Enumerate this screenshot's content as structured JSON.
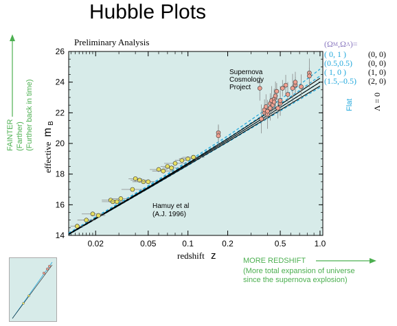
{
  "page": {
    "title": "Hubble Plots"
  },
  "annotations": {
    "fainter": "FAINTER",
    "farther": "(Farther)",
    "further_back": "(Further back in time)",
    "more_redshift": "MORE REDSHIFT",
    "more_redshift_note_1": "(More total expansion of universe",
    "more_redshift_note_2": "since the supernova explosion)",
    "flat": "Flat",
    "lambda_zero": "Λ = 0"
  },
  "legend": {
    "header": "(Ω",
    "header_m": "M",
    "header_sep": ",Ω",
    "header_l": "Λ",
    "header_end": ")=",
    "rows": [
      {
        "flat": "( 0,    1 )",
        "open": "(0, 0)"
      },
      {
        "flat": "(0.5,0.5)",
        "open": "(0, 0)"
      },
      {
        "flat": "( 1,    0 )",
        "open": "(1, 0)"
      },
      {
        "flat": "(1.5,–0.5)",
        "open": "(2, 0)"
      }
    ]
  },
  "colors": {
    "plot_bg": "#d7ebe9",
    "flat_models": "#22a8dc",
    "open_models": "#000000",
    "high_z_points": "#f0a090",
    "low_z_points": "#e8e060",
    "error_bars": "#888888",
    "arrow_green": "#4caf50"
  },
  "chart_data": {
    "type": "scatter",
    "title": "Preliminary Analysis",
    "xlabel": "redshift",
    "xlabel_symbol": "z",
    "ylabel": "effective",
    "ylabel_symbol": "m",
    "ylabel_sub": "B",
    "x_scale": "log",
    "xlim": [
      0.0125,
      1.05
    ],
    "ylim": [
      14,
      26
    ],
    "x_ticks": [
      0.02,
      0.05,
      0.1,
      0.2,
      0.5,
      1.0
    ],
    "x_tick_labels": [
      "0.02",
      "0.05",
      "0.1",
      "0.2",
      "0.5",
      "1.0"
    ],
    "y_ticks": [
      14,
      16,
      18,
      20,
      22,
      24,
      26
    ],
    "y_tick_labels": [
      "14",
      "16",
      "18",
      "20",
      "22",
      "24",
      "26"
    ],
    "text_labels": {
      "high_z_group_1": "Supernova",
      "high_z_group_2": "Cosmology",
      "high_z_group_3": "Project",
      "low_z_group_1": "Hamuy et al",
      "low_z_group_2": "(A.J. 1996)"
    },
    "series": [
      {
        "name": "Supernova Cosmology Project",
        "marker": "circle",
        "color": "#f0a090",
        "points": [
          [
            0.17,
            20.7
          ],
          [
            0.17,
            20.5
          ],
          [
            0.35,
            23.6
          ],
          [
            0.36,
            21.6
          ],
          [
            0.38,
            22.0
          ],
          [
            0.38,
            22.2
          ],
          [
            0.39,
            22.4
          ],
          [
            0.4,
            21.9
          ],
          [
            0.4,
            22.1
          ],
          [
            0.42,
            22.6
          ],
          [
            0.42,
            22.3
          ],
          [
            0.43,
            22.8
          ],
          [
            0.44,
            22.5
          ],
          [
            0.45,
            22.9
          ],
          [
            0.45,
            22.7
          ],
          [
            0.46,
            23.1
          ],
          [
            0.47,
            23.4
          ],
          [
            0.48,
            22.3
          ],
          [
            0.5,
            22.6
          ],
          [
            0.5,
            22.8
          ],
          [
            0.52,
            23.6
          ],
          [
            0.55,
            23.8
          ],
          [
            0.57,
            23.2
          ],
          [
            0.62,
            23.6
          ],
          [
            0.65,
            23.8
          ],
          [
            0.65,
            24.0
          ],
          [
            0.72,
            23.7
          ],
          [
            0.83,
            24.6
          ],
          [
            0.83,
            24.4
          ]
        ]
      },
      {
        "name": "Hamuy et al",
        "marker": "circle",
        "color": "#e8e060",
        "points": [
          [
            0.0145,
            14.6
          ],
          [
            0.017,
            15.0
          ],
          [
            0.019,
            15.4
          ],
          [
            0.021,
            15.3
          ],
          [
            0.026,
            16.3
          ],
          [
            0.027,
            16.2
          ],
          [
            0.029,
            16.2
          ],
          [
            0.031,
            16.4
          ],
          [
            0.038,
            17.0
          ],
          [
            0.04,
            17.7
          ],
          [
            0.043,
            17.6
          ],
          [
            0.046,
            17.5
          ],
          [
            0.05,
            17.5
          ],
          [
            0.06,
            18.3
          ],
          [
            0.065,
            18.2
          ],
          [
            0.07,
            18.5
          ],
          [
            0.075,
            18.4
          ],
          [
            0.08,
            18.7
          ],
          [
            0.09,
            18.9
          ],
          [
            0.1,
            19.0
          ],
          [
            0.11,
            19.1
          ]
        ]
      }
    ],
    "model_curves": {
      "flat": [
        {
          "name": "(0, 1)",
          "values": [
            [
              0.0125,
              14.16
            ],
            [
              0.05,
              17.24
            ],
            [
              0.1,
              18.83
            ],
            [
              0.2,
              20.49
            ],
            [
              0.5,
              22.85
            ],
            [
              1.0,
              24.85
            ]
          ]
        },
        {
          "name": "(0.5, 0.5)",
          "values": [
            [
              0.0125,
              14.12
            ],
            [
              0.05,
              17.18
            ],
            [
              0.1,
              18.74
            ],
            [
              0.2,
              20.35
            ],
            [
              0.5,
              22.58
            ],
            [
              1.0,
              24.4
            ]
          ]
        },
        {
          "name": "(1, 0)",
          "values": [
            [
              0.0125,
              14.09
            ],
            [
              0.05,
              17.11
            ],
            [
              0.1,
              18.65
            ],
            [
              0.2,
              20.21
            ],
            [
              0.5,
              22.34
            ],
            [
              1.0,
              24.0
            ]
          ]
        },
        {
          "name": "(1.5, -0.5)",
          "values": [
            [
              0.0125,
              14.05
            ],
            [
              0.05,
              17.05
            ],
            [
              0.1,
              18.56
            ],
            [
              0.2,
              20.08
            ],
            [
              0.5,
              22.12
            ],
            [
              1.0,
              23.66
            ]
          ]
        }
      ],
      "open": [
        {
          "name": "(0, 0)",
          "values": [
            [
              0.0125,
              14.1
            ],
            [
              0.05,
              17.14
            ],
            [
              0.1,
              18.7
            ],
            [
              0.2,
              20.31
            ],
            [
              0.5,
              22.52
            ],
            [
              1.0,
              24.26
            ]
          ]
        },
        {
          "name": "(1, 0)",
          "values": [
            [
              0.0125,
              14.09
            ],
            [
              0.05,
              17.11
            ],
            [
              0.1,
              18.65
            ],
            [
              0.2,
              20.21
            ],
            [
              0.5,
              22.34
            ],
            [
              1.0,
              24.0
            ]
          ]
        },
        {
          "name": "(2, 0)",
          "values": [
            [
              0.0125,
              14.06
            ],
            [
              0.05,
              17.06
            ],
            [
              0.1,
              18.58
            ],
            [
              0.2,
              20.11
            ],
            [
              0.5,
              22.18
            ],
            [
              1.0,
              23.75
            ]
          ]
        }
      ]
    }
  }
}
